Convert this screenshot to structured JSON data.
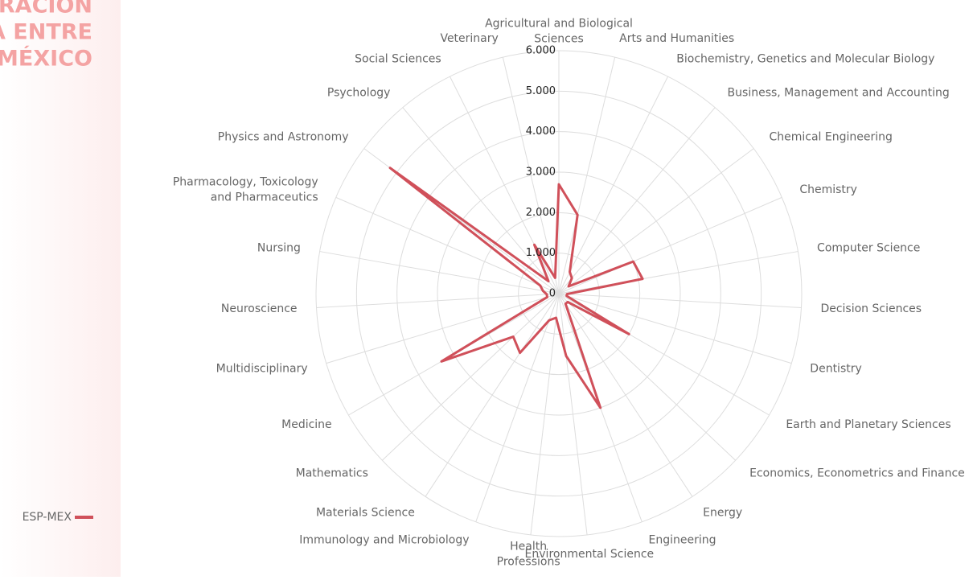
{
  "chart_data": {
    "type": "radar",
    "title_lines": [
      "URACIÓN",
      "A ENTRE",
      "MÉXICO"
    ],
    "categories": [
      "Agricultural and Biological\nSciences",
      "Arts and Humanities",
      "Biochemistry, Genetics and Molecular Biology",
      "Business, Management and Accounting",
      "Chemical Engineering",
      "Chemistry",
      "Computer Science",
      "Decision Sciences",
      "Dentistry",
      "Earth and Planetary Sciences",
      "Economics, Econometrics and Finance",
      "Energy",
      "Engineering",
      "Environmental Science",
      "Health\nProfessions",
      "Immunology and Microbiology",
      "Materials Science",
      "Mathematics",
      "Medicine",
      "Multidisciplinary",
      "Neuroscience",
      "Nursing",
      "Pharmacology, Toxicology\nand Pharmaceutics",
      "Physics and Astronomy",
      "Psychology",
      "Social Sciences",
      "Veterinary"
    ],
    "series": [
      {
        "name": "ESP-MEX",
        "color": "#d0505a",
        "values": [
          2700,
          2000,
          600,
          500,
          300,
          2000,
          2100,
          200,
          200,
          2000,
          300,
          300,
          3000,
          1550,
          600,
          700,
          1750,
          1550,
          3350,
          300,
          300,
          400,
          500,
          5200,
          400,
          1350,
          400
        ]
      }
    ],
    "ylim": [
      0,
      6000
    ],
    "yticks": [
      0,
      {
        "value": 1000,
        "label": "1.000"
      },
      {
        "value": 2000,
        "label": "2.000"
      },
      {
        "value": 3000,
        "label": "3.000"
      },
      {
        "value": 4000,
        "label": "4.000"
      },
      {
        "value": 5000,
        "label": "5.000"
      },
      {
        "value": 6000,
        "label": "6.000"
      }
    ],
    "grid": true,
    "legend": "bottom-left"
  }
}
